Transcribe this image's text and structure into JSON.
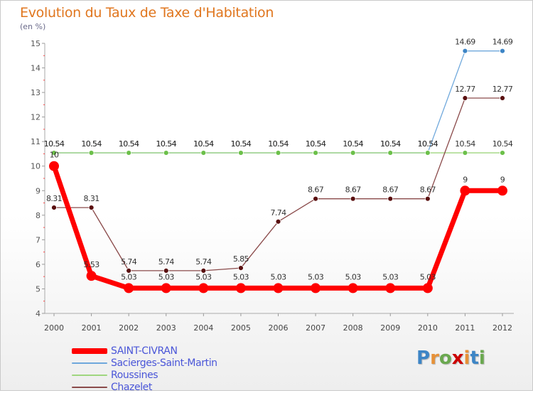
{
  "header": {
    "title": "Evolution du Taux de Taxe d'Habitation",
    "subtitle": "(en %)"
  },
  "chart_data": {
    "type": "line",
    "title": "Evolution du Taux de Taxe d'Habitation",
    "ylabel": "(en %)",
    "xlabel": "",
    "categories": [
      "2000",
      "2001",
      "2002",
      "2003",
      "2004",
      "2005",
      "2006",
      "2007",
      "2008",
      "2009",
      "2010",
      "2011",
      "2012"
    ],
    "ylim": [
      4,
      15
    ],
    "yticks": [
      "4",
      "5",
      "6",
      "7",
      "8",
      "9",
      "10",
      "11",
      "12",
      "13",
      "14",
      "15"
    ],
    "series": [
      {
        "name": "Sacierges-Saint-Martin",
        "color": "#6fa8dc",
        "marker": "#3d85c6",
        "values": [
          10.54,
          10.54,
          10.54,
          10.54,
          10.54,
          10.54,
          10.54,
          10.54,
          10.54,
          10.54,
          10.54,
          14.69,
          14.69
        ],
        "labels": [
          "10.54",
          "10.54",
          "10.54",
          "10.54",
          "10.54",
          "10.54",
          "10.54",
          "10.54",
          "10.54",
          "10.54",
          "10.54",
          "14.69",
          "14.69"
        ]
      },
      {
        "name": "Roussines",
        "color": "#9fd67f",
        "marker": "#6cc04a",
        "values": [
          10.54,
          10.54,
          10.54,
          10.54,
          10.54,
          10.54,
          10.54,
          10.54,
          10.54,
          10.54,
          10.54,
          10.54,
          10.54
        ],
        "labels": [
          "10.54",
          "10.54",
          "10.54",
          "10.54",
          "10.54",
          "10.54",
          "10.54",
          "10.54",
          "10.54",
          "10.54",
          "10.54",
          "10.54",
          "10.54"
        ]
      },
      {
        "name": "Chazelet",
        "color": "#8a4a4a",
        "marker": "#5a0f0f",
        "values": [
          8.31,
          8.31,
          5.74,
          5.74,
          5.74,
          5.85,
          7.74,
          8.67,
          8.67,
          8.67,
          8.67,
          12.77,
          12.77
        ],
        "labels": [
          "8.31",
          "8.31",
          "5.74",
          "5.74",
          "5.74",
          "5.85",
          "7.74",
          "8.67",
          "8.67",
          "8.67",
          "8.67",
          "12.77",
          "12.77"
        ]
      },
      {
        "name": "SAINT-CIVRAN",
        "color": "#ff0000",
        "marker": "#ff0000",
        "values": [
          10,
          5.53,
          5.03,
          5.03,
          5.03,
          5.03,
          5.03,
          5.03,
          5.03,
          5.03,
          5.03,
          9,
          9
        ],
        "labels": [
          "10",
          "5.53",
          "5.03",
          "5.03",
          "5.03",
          "5.03",
          "5.03",
          "5.03",
          "5.03",
          "5.03",
          "5.03",
          "9",
          "9"
        ]
      }
    ]
  },
  "legend": {
    "items": [
      {
        "label": "SAINT-CIVRAN",
        "color": "#ff0000"
      },
      {
        "label": "Sacierges-Saint-Martin",
        "color": "#6fa8dc"
      },
      {
        "label": "Roussines",
        "color": "#9fd67f"
      },
      {
        "label": "Chazelet",
        "color": "#8a4a4a"
      }
    ]
  },
  "logo": {
    "letters": [
      "P",
      "r",
      "o",
      "x",
      "i",
      "t",
      "i"
    ],
    "colors": [
      "#3d85c6",
      "#e69138",
      "#6aa84f",
      "#cc0000",
      "#e69138",
      "#3d85c6",
      "#6aa84f"
    ]
  }
}
